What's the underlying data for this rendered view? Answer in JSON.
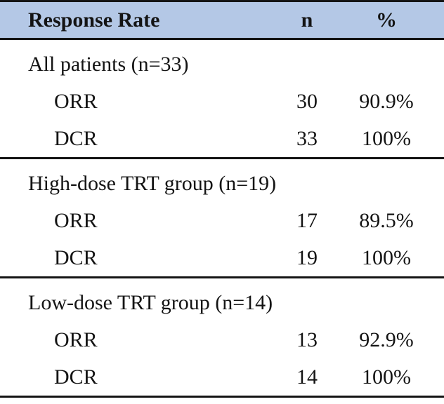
{
  "table": {
    "columns": [
      "Response Rate",
      "n",
      "%"
    ],
    "sections": [
      {
        "label": "All patients (n=33)",
        "rows": [
          {
            "metric": "ORR",
            "n": "30",
            "pct": "90.9%"
          },
          {
            "metric": "DCR",
            "n": "33",
            "pct": "100%"
          }
        ]
      },
      {
        "label": "High-dose TRT group (n=19)",
        "rows": [
          {
            "metric": "ORR",
            "n": "17",
            "pct": "89.5%"
          },
          {
            "metric": "DCR",
            "n": "19",
            "pct": "100%"
          }
        ]
      },
      {
        "label": "Low-dose TRT group (n=14)",
        "rows": [
          {
            "metric": "ORR",
            "n": "13",
            "pct": "92.9%"
          },
          {
            "metric": "DCR",
            "n": "14",
            "pct": "100%"
          }
        ]
      }
    ]
  },
  "colors": {
    "header_bg": "#b4c8e6",
    "rule": "#141414"
  }
}
